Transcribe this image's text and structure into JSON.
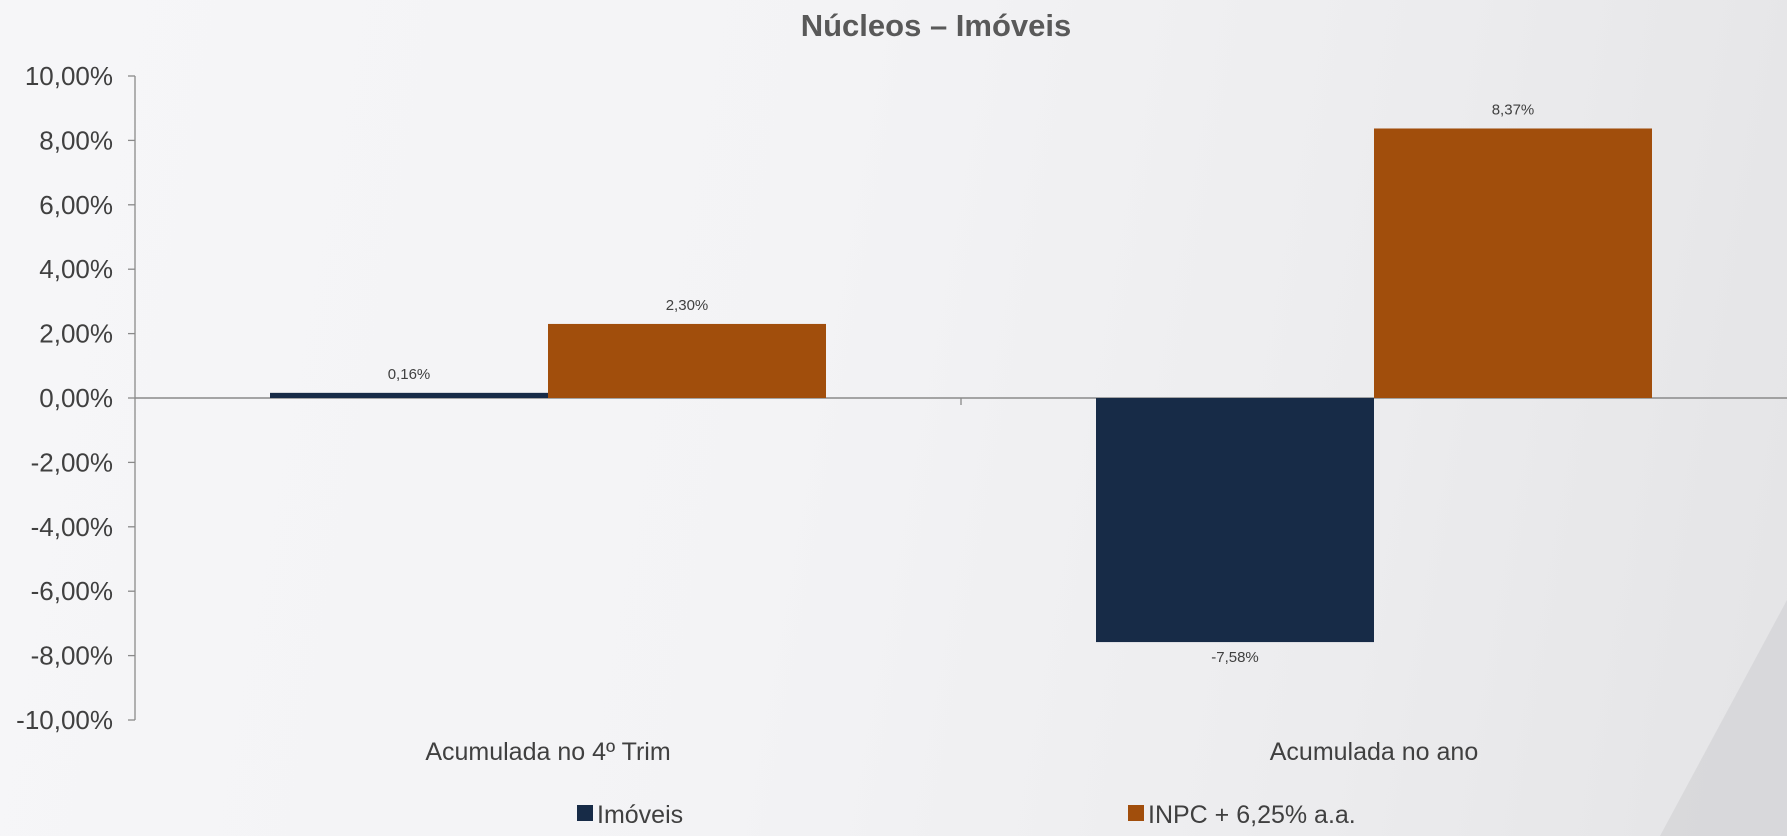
{
  "chart_data": {
    "type": "bar",
    "title": "Núcleos – Imóveis",
    "categories": [
      "Acumulada no 4º Trim",
      "Acumulada no ano"
    ],
    "series": [
      {
        "name": "Imóveis",
        "color": "#172b47",
        "values": [
          0.16,
          -7.58
        ],
        "labels": [
          "0,16%",
          "-7,58%"
        ]
      },
      {
        "name": "INPC + 6,25% a.a.",
        "color": "#a14e0c",
        "values": [
          2.3,
          8.37
        ],
        "labels": [
          "2,30%",
          "8,37%"
        ]
      }
    ],
    "ylim": [
      -10,
      10
    ],
    "yticks": [
      10,
      8,
      6,
      4,
      2,
      0,
      -2,
      -4,
      -6,
      -8,
      -10
    ],
    "ytick_labels": [
      "10,00%",
      "8,00%",
      "6,00%",
      "4,00%",
      "2,00%",
      "0,00%",
      "-2,00%",
      "-4,00%",
      "-6,00%",
      "-8,00%",
      "-10,00%"
    ],
    "xlabel": "",
    "ylabel": "",
    "grid": false,
    "legend_position": "bottom"
  }
}
